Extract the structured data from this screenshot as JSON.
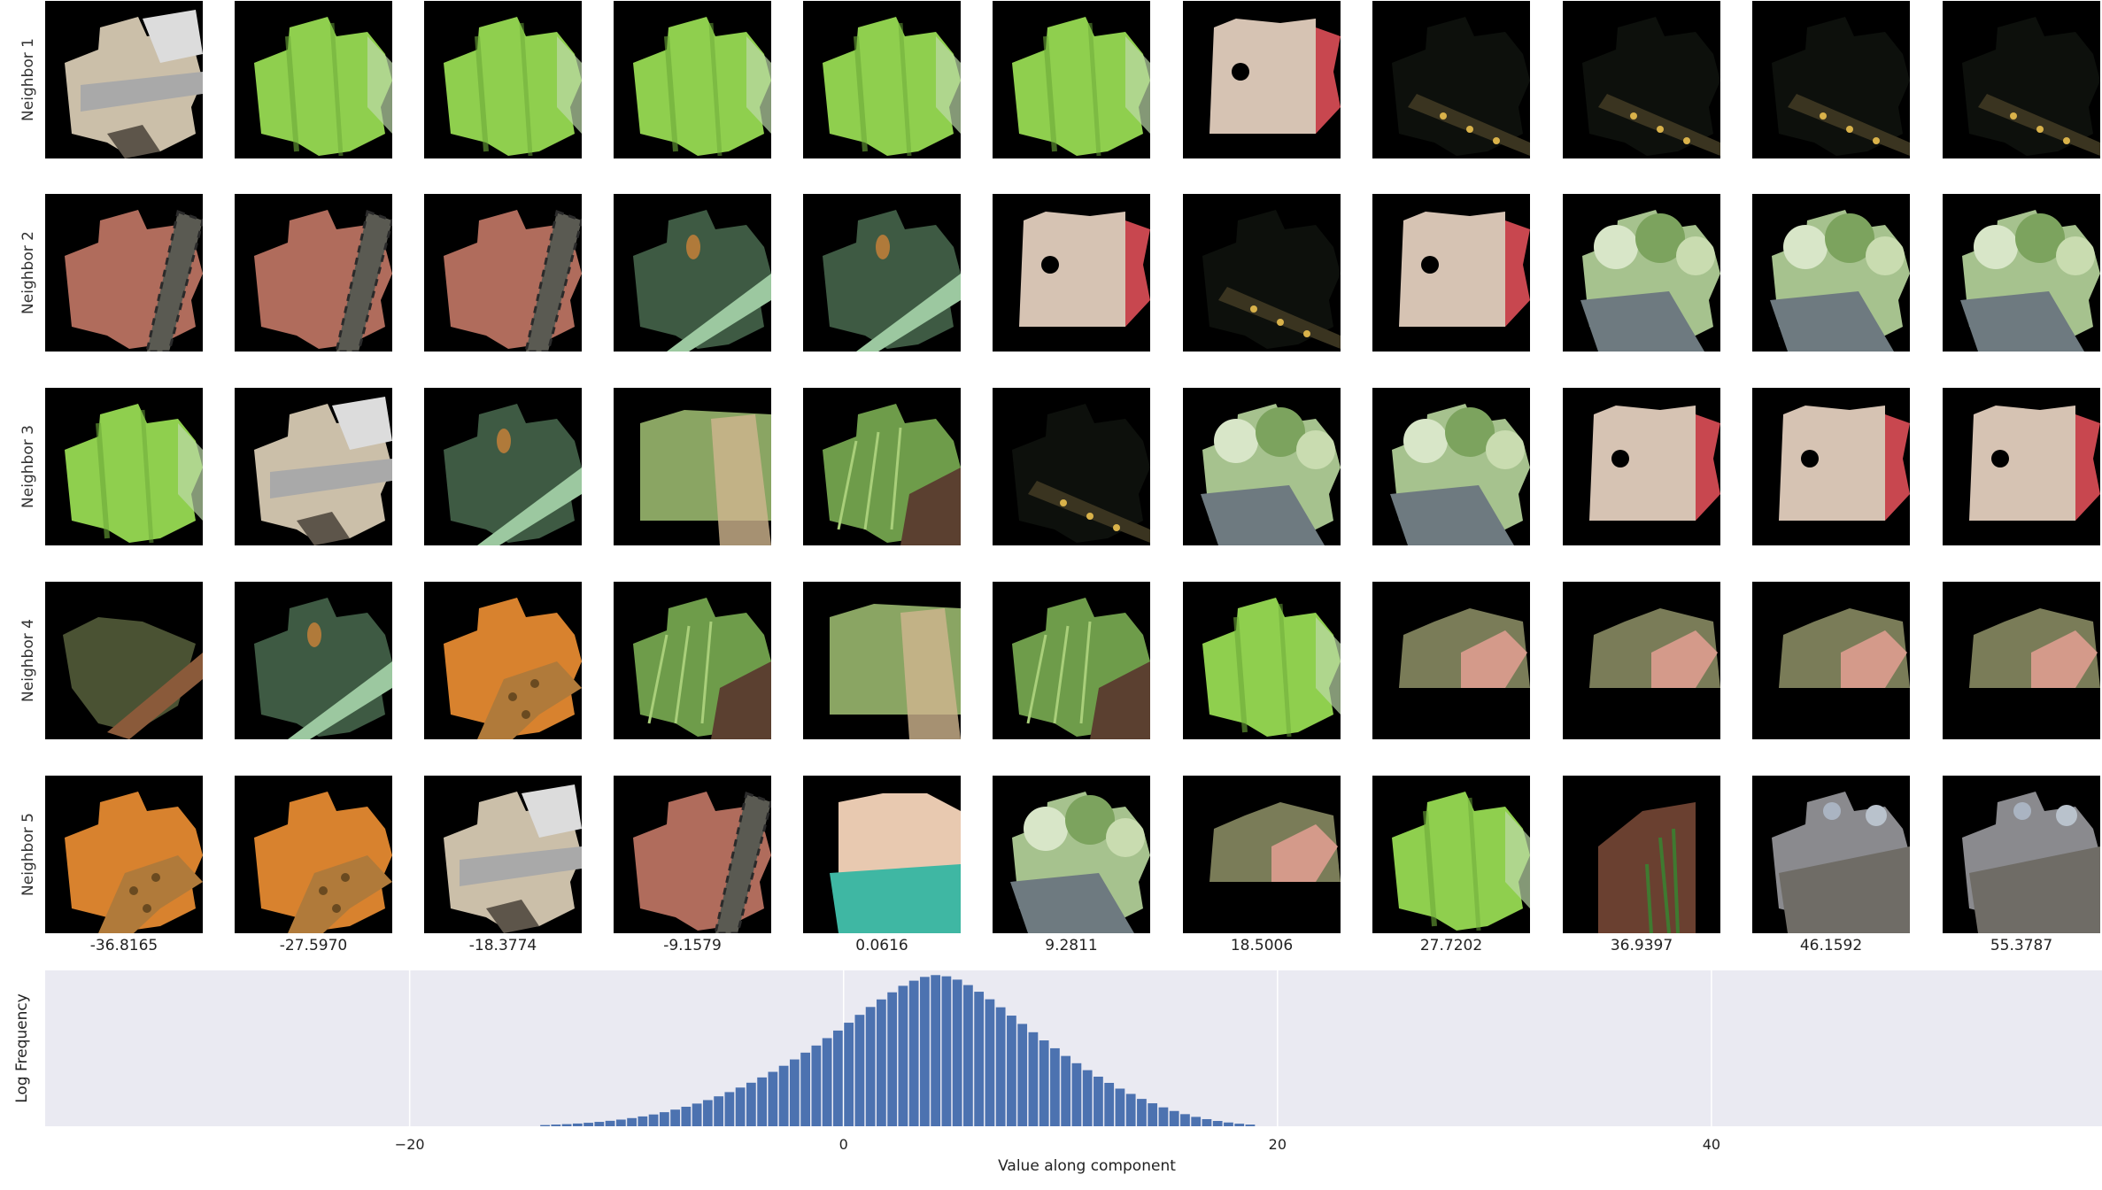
{
  "rows": [
    {
      "label": "Neighbor 1",
      "patches": [
        {
          "icon": "paper-cutout-patch",
          "c1": "#cbbfa9",
          "c2": "#a9a9a9"
        },
        {
          "icon": "leaf-patch",
          "c1": "#8fcf4e",
          "c2": "#6da93a"
        },
        {
          "icon": "leaf-patch",
          "c1": "#8fcf4e",
          "c2": "#6da93a"
        },
        {
          "icon": "leaf-patch",
          "c1": "#8fcf4e",
          "c2": "#6da93a"
        },
        {
          "icon": "leaf-patch",
          "c1": "#8fcf4e",
          "c2": "#6da93a"
        },
        {
          "icon": "leaf-patch",
          "c1": "#8fcf4e",
          "c2": "#6da93a"
        },
        {
          "icon": "blur-skin-patch",
          "c1": "#d6c3b3",
          "c2": "#c8474f"
        },
        {
          "icon": "dark-lizard-patch",
          "c1": "#0d100c",
          "c2": "#3a3420"
        },
        {
          "icon": "dark-lizard-patch",
          "c1": "#0d100c",
          "c2": "#3a3420"
        },
        {
          "icon": "dark-lizard-patch",
          "c1": "#0d100c",
          "c2": "#3a3420"
        },
        {
          "icon": "dark-lizard-patch",
          "c1": "#0d100c",
          "c2": "#3a3420"
        }
      ]
    },
    {
      "label": "Neighbor 2",
      "patches": [
        {
          "icon": "rusty-patch",
          "c1": "#b06c5c",
          "c2": "#5a5a52"
        },
        {
          "icon": "rusty-patch",
          "c1": "#b06c5c",
          "c2": "#5a5a52"
        },
        {
          "icon": "rusty-patch",
          "c1": "#b06c5c",
          "c2": "#5a5a52"
        },
        {
          "icon": "dark-green-stem-patch",
          "c1": "#3e5a43",
          "c2": "#9cc8a0"
        },
        {
          "icon": "dark-green-stem-patch",
          "c1": "#3e5a43",
          "c2": "#9cc8a0"
        },
        {
          "icon": "blur-skin-patch",
          "c1": "#d6c3b3",
          "c2": "#c8474f"
        },
        {
          "icon": "dark-lizard-patch",
          "c1": "#0d100c",
          "c2": "#3a3420"
        },
        {
          "icon": "blur-skin-patch",
          "c1": "#d6c3b3",
          "c2": "#c8474f"
        },
        {
          "icon": "tree-water-patch",
          "c1": "#a6c28e",
          "c2": "#6e7a80"
        },
        {
          "icon": "tree-water-patch",
          "c1": "#a6c28e",
          "c2": "#6e7a80"
        },
        {
          "icon": "tree-water-patch",
          "c1": "#a6c28e",
          "c2": "#6e7a80"
        }
      ]
    },
    {
      "label": "Neighbor 3",
      "patches": [
        {
          "icon": "leaf-patch",
          "c1": "#8fcf4e",
          "c2": "#6da93a"
        },
        {
          "icon": "paper-cutout-patch",
          "c1": "#cbbfa9",
          "c2": "#a9a9a9"
        },
        {
          "icon": "dark-green-stem-patch",
          "c1": "#3e5a43",
          "c2": "#9cc8a0"
        },
        {
          "icon": "blur-green-patch",
          "c1": "#8aa563",
          "c2": "#cfb58f"
        },
        {
          "icon": "grass-patch",
          "c1": "#6e9c4a",
          "c2": "#5b4030"
        },
        {
          "icon": "dark-lizard-patch",
          "c1": "#0d100c",
          "c2": "#3a3420"
        },
        {
          "icon": "tree-water-patch",
          "c1": "#a6c28e",
          "c2": "#6e7a80"
        },
        {
          "icon": "tree-water-patch",
          "c1": "#a6c28e",
          "c2": "#6e7a80"
        },
        {
          "icon": "blur-skin-patch",
          "c1": "#d6c3b3",
          "c2": "#c8474f"
        },
        {
          "icon": "blur-skin-patch",
          "c1": "#d6c3b3",
          "c2": "#c8474f"
        },
        {
          "icon": "blur-skin-patch",
          "c1": "#d6c3b3",
          "c2": "#c8474f"
        }
      ]
    },
    {
      "label": "Neighbor 4",
      "patches": [
        {
          "icon": "wood-patch",
          "c1": "#4a5233",
          "c2": "#8a5a3a"
        },
        {
          "icon": "dark-green-stem-patch",
          "c1": "#3e5a43",
          "c2": "#9cc8a0"
        },
        {
          "icon": "snake-patch",
          "c1": "#d8822e",
          "c2": "#b07a3a"
        },
        {
          "icon": "grass-patch",
          "c1": "#6e9c4a",
          "c2": "#5b4030"
        },
        {
          "icon": "blur-green-patch",
          "c1": "#8aa563",
          "c2": "#cfb58f"
        },
        {
          "icon": "grass-patch",
          "c1": "#6e9c4a",
          "c2": "#5b4030"
        },
        {
          "icon": "leaf-patch",
          "c1": "#8fcf4e",
          "c2": "#6da93a"
        },
        {
          "icon": "finger-patch",
          "c1": "#7a7c58",
          "c2": "#d49a8a"
        },
        {
          "icon": "finger-patch",
          "c1": "#7a7c58",
          "c2": "#d49a8a"
        },
        {
          "icon": "finger-patch",
          "c1": "#7a7c58",
          "c2": "#d49a8a"
        },
        {
          "icon": "finger-patch",
          "c1": "#7a7c58",
          "c2": "#d49a8a"
        }
      ]
    },
    {
      "label": "Neighbor 5",
      "patches": [
        {
          "icon": "snake-patch",
          "c1": "#d8822e",
          "c2": "#b07a3a"
        },
        {
          "icon": "snake-patch",
          "c1": "#d8822e",
          "c2": "#b07a3a"
        },
        {
          "icon": "paper-cutout-patch",
          "c1": "#cbbfa9",
          "c2": "#a9a9a9"
        },
        {
          "icon": "rusty-patch",
          "c1": "#b06c5c",
          "c2": "#5a5a52"
        },
        {
          "icon": "teal-blur-patch",
          "c1": "#e8c9b0",
          "c2": "#3fb7a3"
        },
        {
          "icon": "tree-water-patch",
          "c1": "#a6c28e",
          "c2": "#6e7a80"
        },
        {
          "icon": "finger-patch",
          "c1": "#7a7c58",
          "c2": "#d49a8a"
        },
        {
          "icon": "leaf-patch",
          "c1": "#8fcf4e",
          "c2": "#6da93a"
        },
        {
          "icon": "reed-patch",
          "c1": "#6a4030",
          "c2": "#3f7a30"
        },
        {
          "icon": "rock-patch",
          "c1": "#8a8a8e",
          "c2": "#6f6c66"
        },
        {
          "icon": "rock-patch",
          "c1": "#8a8a8e",
          "c2": "#6f6c66"
        }
      ]
    }
  ],
  "column_values": [
    "-36.8165",
    "-27.5970",
    "-18.3774",
    "-9.1579",
    "0.0616",
    "9.2811",
    "18.5006",
    "27.7202",
    "36.9397",
    "46.1592",
    "55.3787"
  ],
  "chart_data": {
    "type": "bar",
    "title": "",
    "xlabel": "Value along component",
    "ylabel": "Log Frequency",
    "xlim": [
      -36.8,
      58.0
    ],
    "ylim": [
      0,
      1.0
    ],
    "xticks": [
      -20,
      0,
      20,
      40
    ],
    "xtick_labels": [
      "−20",
      "0",
      "20",
      "40"
    ],
    "grid": true,
    "background": "#eaeaf2",
    "bar_color": "#4c72b0",
    "bin_width": 0.5,
    "bin_start": -14.0,
    "values": [
      0.008,
      0.011,
      0.014,
      0.018,
      0.023,
      0.029,
      0.036,
      0.044,
      0.054,
      0.065,
      0.078,
      0.093,
      0.11,
      0.129,
      0.15,
      0.173,
      0.198,
      0.226,
      0.256,
      0.288,
      0.323,
      0.36,
      0.4,
      0.442,
      0.487,
      0.534,
      0.583,
      0.633,
      0.685,
      0.737,
      0.789,
      0.839,
      0.886,
      0.929,
      0.963,
      0.988,
      1.0,
      0.992,
      0.97,
      0.934,
      0.89,
      0.84,
      0.787,
      0.732,
      0.677,
      0.622,
      0.568,
      0.516,
      0.465,
      0.417,
      0.371,
      0.328,
      0.287,
      0.249,
      0.214,
      0.181,
      0.152,
      0.125,
      0.101,
      0.08,
      0.062,
      0.047,
      0.035,
      0.025,
      0.017,
      0.011
    ]
  }
}
